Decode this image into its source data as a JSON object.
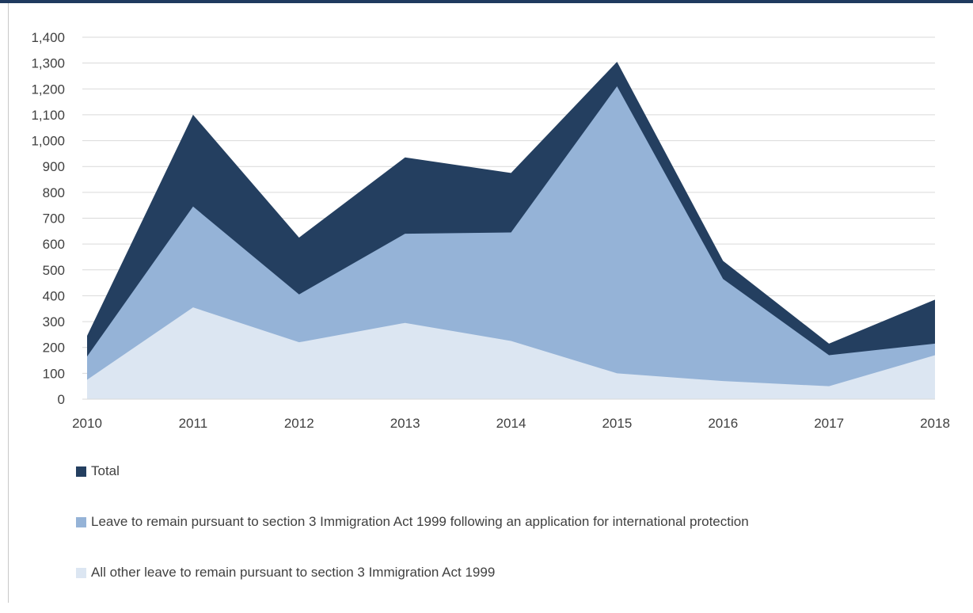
{
  "chart_data": {
    "type": "area",
    "stacked": false,
    "categories": [
      "2010",
      "2011",
      "2012",
      "2013",
      "2014",
      "2015",
      "2016",
      "2017",
      "2018"
    ],
    "series": [
      {
        "name": "Total",
        "color": "#243f60",
        "values": [
          245,
          1100,
          625,
          935,
          875,
          1305,
          535,
          215,
          385
        ]
      },
      {
        "name": "Leave to remain pursuant to section 3 Immigration Act 1999 following an application for international protection",
        "color": "#95b3d7",
        "values": [
          165,
          745,
          405,
          640,
          645,
          1210,
          465,
          170,
          215
        ]
      },
      {
        "name": "All other leave to remain pursuant to section 3 Immigration Act 1999",
        "color": "#dce6f2",
        "values": [
          75,
          355,
          220,
          295,
          225,
          100,
          70,
          50,
          170
        ]
      }
    ],
    "y_ticks": [
      "0",
      "100",
      "200",
      "300",
      "400",
      "500",
      "600",
      "700",
      "800",
      "900",
      "1,000",
      "1,100",
      "1,200",
      "1,300",
      "1,400"
    ],
    "ylim": [
      0,
      1400
    ],
    "grid": true,
    "legend_position": "bottom"
  }
}
